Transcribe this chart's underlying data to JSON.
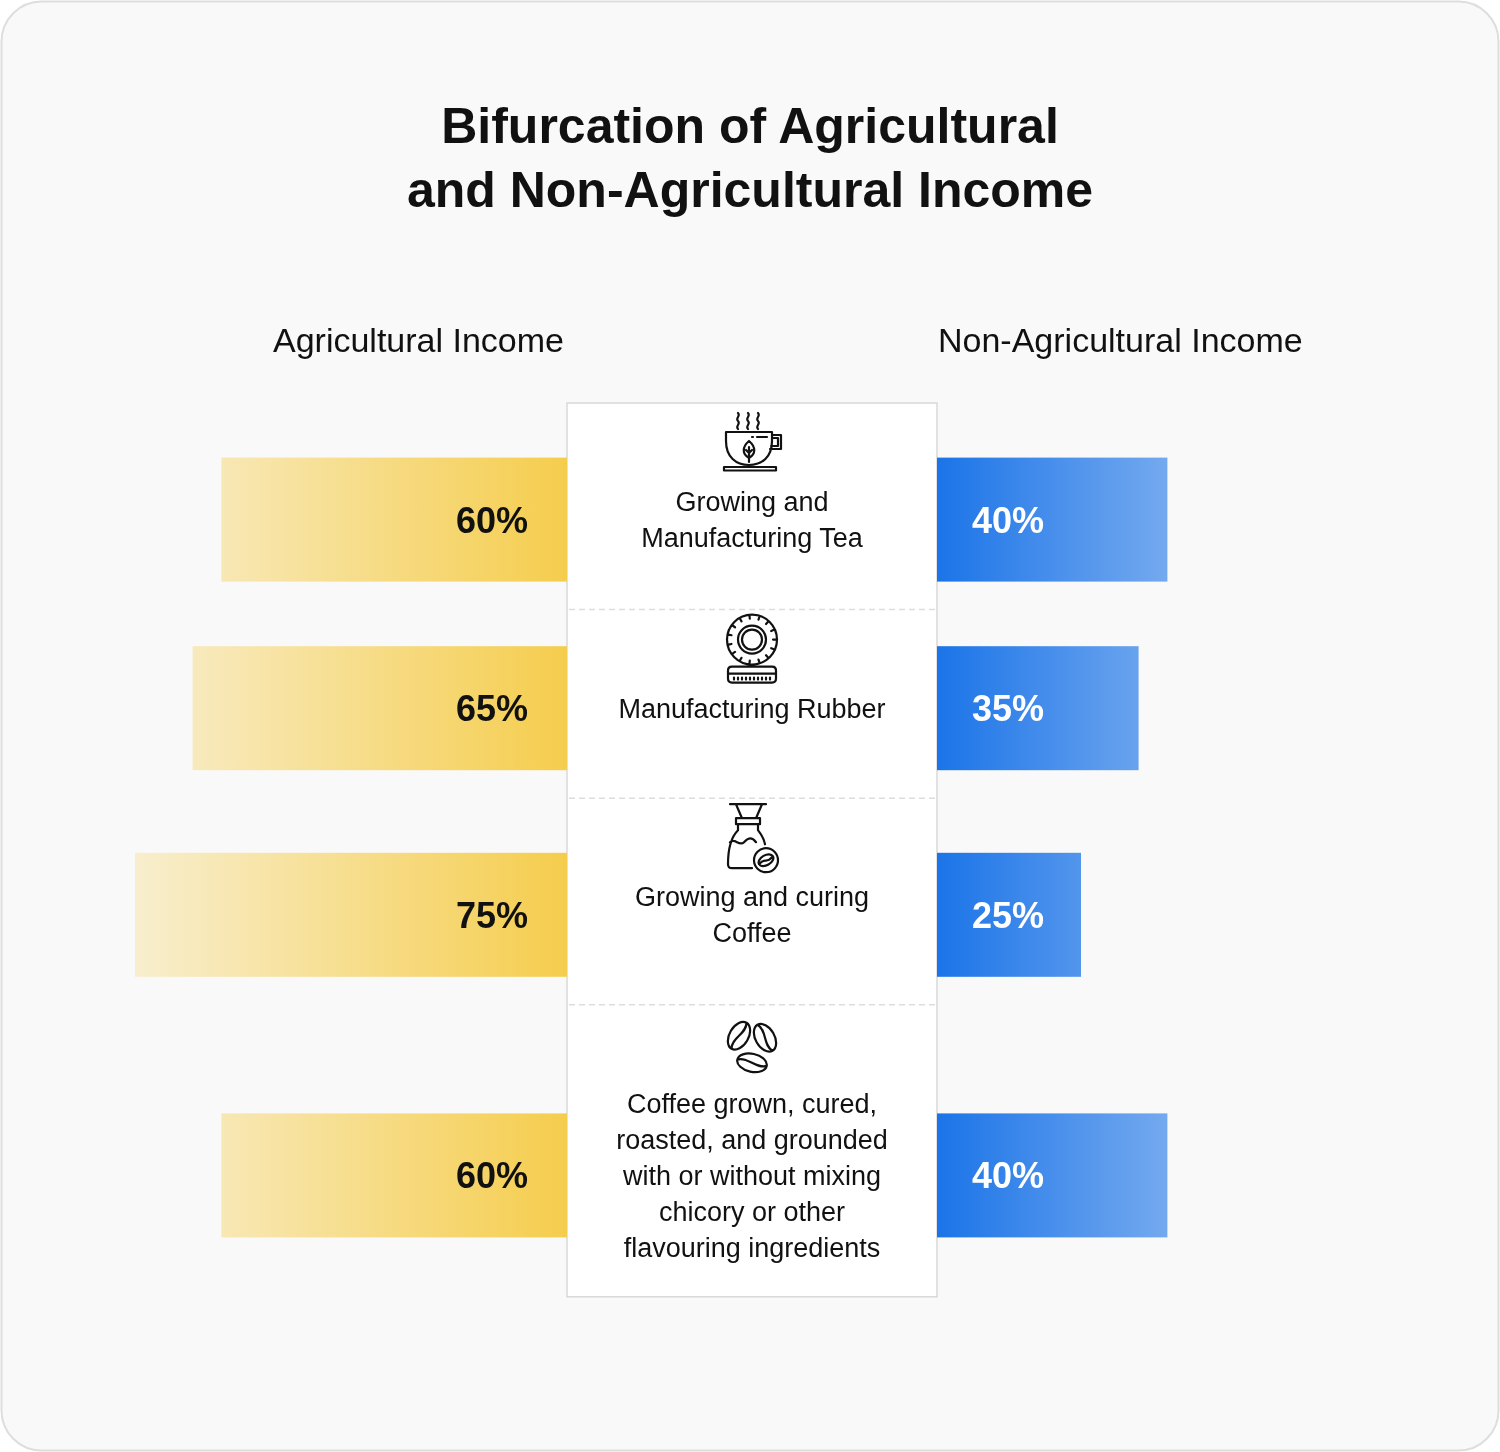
{
  "chart_data": [
    {
      "type": "bar",
      "orientation": "horizontal",
      "title": "Bifurcation of Agricultural and Non-Agricultural Income",
      "categories": [
        "Growing and Manufacturing Tea",
        "Manufacturing Rubber",
        "Growing and curing Coffee",
        "Coffee grown, cured, roasted, and grounded with or without mixing chicory or other flavouring ingredients"
      ],
      "series": [
        {
          "name": "Agricultural Income",
          "color": "#f5cd4d",
          "values": [
            60,
            65,
            75,
            60
          ],
          "value_labels": [
            "60%",
            "65%",
            "75%",
            "60%"
          ]
        }
      ]
    },
    {
      "type": "bar",
      "orientation": "horizontal",
      "categories": [
        null,
        null,
        null,
        null
      ],
      "series": [
        {
          "name": "Non-Agricultural Income",
          "color": "#1b74e8",
          "values": [
            40,
            35,
            25,
            40
          ],
          "value_labels": [
            "40%",
            "35%",
            "25%",
            "40%"
          ]
        }
      ]
    }
  ]
}
